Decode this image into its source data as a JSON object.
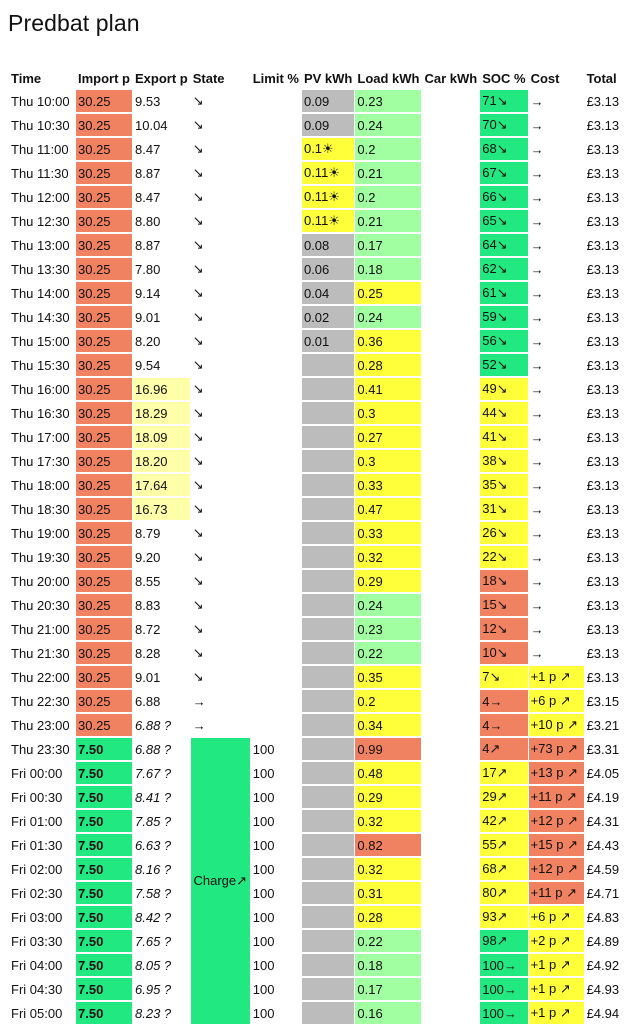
{
  "title": "Predbat plan",
  "headers": {
    "time": "Time",
    "import": "Import p",
    "export": "Export p",
    "state": "State",
    "limit": "Limit %",
    "pv": "PV kWh",
    "load": "Load kWh",
    "car": "Car kWh",
    "soc": "SOC %",
    "cost": "Cost",
    "total": "Total"
  },
  "colors": {
    "red": "#F18261",
    "green": "#22E882",
    "light_green": "#A1FFA1",
    "yellow": "#FFFF3A",
    "light_yellow": "#FFFFAA",
    "grey": "#BCBCBC"
  },
  "charge_state_label": "Charge↗",
  "rows": [
    {
      "time": "Thu 10:00",
      "import": "30.25",
      "export": "9.53",
      "state": "↘",
      "limit": "",
      "pv": "0.09",
      "load": "0.23",
      "car": "",
      "soc": "71↘",
      "cost": "→",
      "total": "£3.13"
    },
    {
      "time": "Thu 10:30",
      "import": "30.25",
      "export": "10.04",
      "state": "↘",
      "limit": "",
      "pv": "0.09",
      "load": "0.24",
      "car": "",
      "soc": "70↘",
      "cost": "→",
      "total": "£3.13"
    },
    {
      "time": "Thu 11:00",
      "import": "30.25",
      "export": "8.47",
      "state": "↘",
      "limit": "",
      "pv": "0.1☀",
      "load": "0.2",
      "car": "",
      "soc": "68↘",
      "cost": "→",
      "total": "£3.13"
    },
    {
      "time": "Thu 11:30",
      "import": "30.25",
      "export": "8.87",
      "state": "↘",
      "limit": "",
      "pv": "0.11☀",
      "load": "0.21",
      "car": "",
      "soc": "67↘",
      "cost": "→",
      "total": "£3.13"
    },
    {
      "time": "Thu 12:00",
      "import": "30.25",
      "export": "8.47",
      "state": "↘",
      "limit": "",
      "pv": "0.11☀",
      "load": "0.2",
      "car": "",
      "soc": "66↘",
      "cost": "→",
      "total": "£3.13"
    },
    {
      "time": "Thu 12:30",
      "import": "30.25",
      "export": "8.80",
      "state": "↘",
      "limit": "",
      "pv": "0.11☀",
      "load": "0.21",
      "car": "",
      "soc": "65↘",
      "cost": "→",
      "total": "£3.13"
    },
    {
      "time": "Thu 13:00",
      "import": "30.25",
      "export": "8.87",
      "state": "↘",
      "limit": "",
      "pv": "0.08",
      "load": "0.17",
      "car": "",
      "soc": "64↘",
      "cost": "→",
      "total": "£3.13"
    },
    {
      "time": "Thu 13:30",
      "import": "30.25",
      "export": "7.80",
      "state": "↘",
      "limit": "",
      "pv": "0.06",
      "load": "0.18",
      "car": "",
      "soc": "62↘",
      "cost": "→",
      "total": "£3.13"
    },
    {
      "time": "Thu 14:00",
      "import": "30.25",
      "export": "9.14",
      "state": "↘",
      "limit": "",
      "pv": "0.04",
      "load": "0.25",
      "car": "",
      "soc": "61↘",
      "cost": "→",
      "total": "£3.13"
    },
    {
      "time": "Thu 14:30",
      "import": "30.25",
      "export": "9.01",
      "state": "↘",
      "limit": "",
      "pv": "0.02",
      "load": "0.24",
      "car": "",
      "soc": "59↘",
      "cost": "→",
      "total": "£3.13"
    },
    {
      "time": "Thu 15:00",
      "import": "30.25",
      "export": "8.20",
      "state": "↘",
      "limit": "",
      "pv": "0.01",
      "load": "0.36",
      "car": "",
      "soc": "56↘",
      "cost": "→",
      "total": "£3.13"
    },
    {
      "time": "Thu 15:30",
      "import": "30.25",
      "export": "9.54",
      "state": "↘",
      "limit": "",
      "pv": "",
      "load": "0.28",
      "car": "",
      "soc": "52↘",
      "cost": "→",
      "total": "£3.13"
    },
    {
      "time": "Thu 16:00",
      "import": "30.25",
      "export": "16.96",
      "state": "↘",
      "limit": "",
      "pv": "",
      "load": "0.41",
      "car": "",
      "soc": "49↘",
      "cost": "→",
      "total": "£3.13"
    },
    {
      "time": "Thu 16:30",
      "import": "30.25",
      "export": "18.29",
      "state": "↘",
      "limit": "",
      "pv": "",
      "load": "0.3",
      "car": "",
      "soc": "44↘",
      "cost": "→",
      "total": "£3.13"
    },
    {
      "time": "Thu 17:00",
      "import": "30.25",
      "export": "18.09",
      "state": "↘",
      "limit": "",
      "pv": "",
      "load": "0.27",
      "car": "",
      "soc": "41↘",
      "cost": "→",
      "total": "£3.13"
    },
    {
      "time": "Thu 17:30",
      "import": "30.25",
      "export": "18.20",
      "state": "↘",
      "limit": "",
      "pv": "",
      "load": "0.3",
      "car": "",
      "soc": "38↘",
      "cost": "→",
      "total": "£3.13"
    },
    {
      "time": "Thu 18:00",
      "import": "30.25",
      "export": "17.64",
      "state": "↘",
      "limit": "",
      "pv": "",
      "load": "0.33",
      "car": "",
      "soc": "35↘",
      "cost": "→",
      "total": "£3.13"
    },
    {
      "time": "Thu 18:30",
      "import": "30.25",
      "export": "16.73",
      "state": "↘",
      "limit": "",
      "pv": "",
      "load": "0.47",
      "car": "",
      "soc": "31↘",
      "cost": "→",
      "total": "£3.13"
    },
    {
      "time": "Thu 19:00",
      "import": "30.25",
      "export": "8.79",
      "state": "↘",
      "limit": "",
      "pv": "",
      "load": "0.33",
      "car": "",
      "soc": "26↘",
      "cost": "→",
      "total": "£3.13"
    },
    {
      "time": "Thu 19:30",
      "import": "30.25",
      "export": "9.20",
      "state": "↘",
      "limit": "",
      "pv": "",
      "load": "0.32",
      "car": "",
      "soc": "22↘",
      "cost": "→",
      "total": "£3.13"
    },
    {
      "time": "Thu 20:00",
      "import": "30.25",
      "export": "8.55",
      "state": "↘",
      "limit": "",
      "pv": "",
      "load": "0.29",
      "car": "",
      "soc": "18↘",
      "cost": "→",
      "total": "£3.13"
    },
    {
      "time": "Thu 20:30",
      "import": "30.25",
      "export": "8.83",
      "state": "↘",
      "limit": "",
      "pv": "",
      "load": "0.24",
      "car": "",
      "soc": "15↘",
      "cost": "→",
      "total": "£3.13"
    },
    {
      "time": "Thu 21:00",
      "import": "30.25",
      "export": "8.72",
      "state": "↘",
      "limit": "",
      "pv": "",
      "load": "0.23",
      "car": "",
      "soc": "12↘",
      "cost": "→",
      "total": "£3.13"
    },
    {
      "time": "Thu 21:30",
      "import": "30.25",
      "export": "8.28",
      "state": "↘",
      "limit": "",
      "pv": "",
      "load": "0.22",
      "car": "",
      "soc": "10↘",
      "cost": "→",
      "total": "£3.13"
    },
    {
      "time": "Thu 22:00",
      "import": "30.25",
      "export": "9.01",
      "state": "↘",
      "limit": "",
      "pv": "",
      "load": "0.35",
      "car": "",
      "soc": "7↘",
      "cost": "+1 p ↗",
      "total": "£3.13"
    },
    {
      "time": "Thu 22:30",
      "import": "30.25",
      "export": "6.88",
      "state": "→",
      "limit": "",
      "pv": "",
      "load": "0.2",
      "car": "",
      "soc": "4→",
      "cost": "+6 p ↗",
      "total": "£3.15"
    },
    {
      "time": "Thu 23:00",
      "import": "30.25",
      "export": "6.88 ?",
      "state": "→",
      "limit": "",
      "pv": "",
      "load": "0.34",
      "car": "",
      "soc": "4→",
      "cost": "+10 p ↗",
      "total": "£3.21"
    },
    {
      "time": "Thu 23:30",
      "import": "7.50",
      "export": "6.88 ?",
      "state": "",
      "limit": "100",
      "pv": "",
      "load": "0.99",
      "car": "",
      "soc": "4↗",
      "cost": "+73 p ↗",
      "total": "£3.31"
    },
    {
      "time": "Fri 00:00",
      "import": "7.50",
      "export": "7.67 ?",
      "state": "",
      "limit": "100",
      "pv": "",
      "load": "0.48",
      "car": "",
      "soc": "17↗",
      "cost": "+13 p ↗",
      "total": "£4.05"
    },
    {
      "time": "Fri 00:30",
      "import": "7.50",
      "export": "8.41 ?",
      "state": "",
      "limit": "100",
      "pv": "",
      "load": "0.29",
      "car": "",
      "soc": "29↗",
      "cost": "+11 p ↗",
      "total": "£4.19"
    },
    {
      "time": "Fri 01:00",
      "import": "7.50",
      "export": "7.85 ?",
      "state": "",
      "limit": "100",
      "pv": "",
      "load": "0.32",
      "car": "",
      "soc": "42↗",
      "cost": "+12 p ↗",
      "total": "£4.31"
    },
    {
      "time": "Fri 01:30",
      "import": "7.50",
      "export": "6.63 ?",
      "state": "",
      "limit": "100",
      "pv": "",
      "load": "0.82",
      "car": "",
      "soc": "55↗",
      "cost": "+15 p ↗",
      "total": "£4.43"
    },
    {
      "time": "Fri 02:00",
      "import": "7.50",
      "export": "8.16 ?",
      "state": "",
      "limit": "100",
      "pv": "",
      "load": "0.32",
      "car": "",
      "soc": "68↗",
      "cost": "+12 p ↗",
      "total": "£4.59"
    },
    {
      "time": "Fri 02:30",
      "import": "7.50",
      "export": "7.58 ?",
      "state": "",
      "limit": "100",
      "pv": "",
      "load": "0.31",
      "car": "",
      "soc": "80↗",
      "cost": "+11 p ↗",
      "total": "£4.71"
    },
    {
      "time": "Fri 03:00",
      "import": "7.50",
      "export": "8.42 ?",
      "state": "",
      "limit": "100",
      "pv": "",
      "load": "0.28",
      "car": "",
      "soc": "93↗",
      "cost": "+6 p ↗",
      "total": "£4.83"
    },
    {
      "time": "Fri 03:30",
      "import": "7.50",
      "export": "7.65 ?",
      "state": "",
      "limit": "100",
      "pv": "",
      "load": "0.22",
      "car": "",
      "soc": "98↗",
      "cost": "+2 p ↗",
      "total": "£4.89"
    },
    {
      "time": "Fri 04:00",
      "import": "7.50",
      "export": "8.05 ?",
      "state": "",
      "limit": "100",
      "pv": "",
      "load": "0.18",
      "car": "",
      "soc": "100→",
      "cost": "+1 p ↗",
      "total": "£4.92"
    },
    {
      "time": "Fri 04:30",
      "import": "7.50",
      "export": "6.95 ?",
      "state": "",
      "limit": "100",
      "pv": "",
      "load": "0.17",
      "car": "",
      "soc": "100→",
      "cost": "+1 p ↗",
      "total": "£4.93"
    },
    {
      "time": "Fri 05:00",
      "import": "7.50",
      "export": "8.23 ?",
      "state": "",
      "limit": "100",
      "pv": "",
      "load": "0.16",
      "car": "",
      "soc": "100→",
      "cost": "+1 p ↗",
      "total": "£4.94"
    }
  ]
}
